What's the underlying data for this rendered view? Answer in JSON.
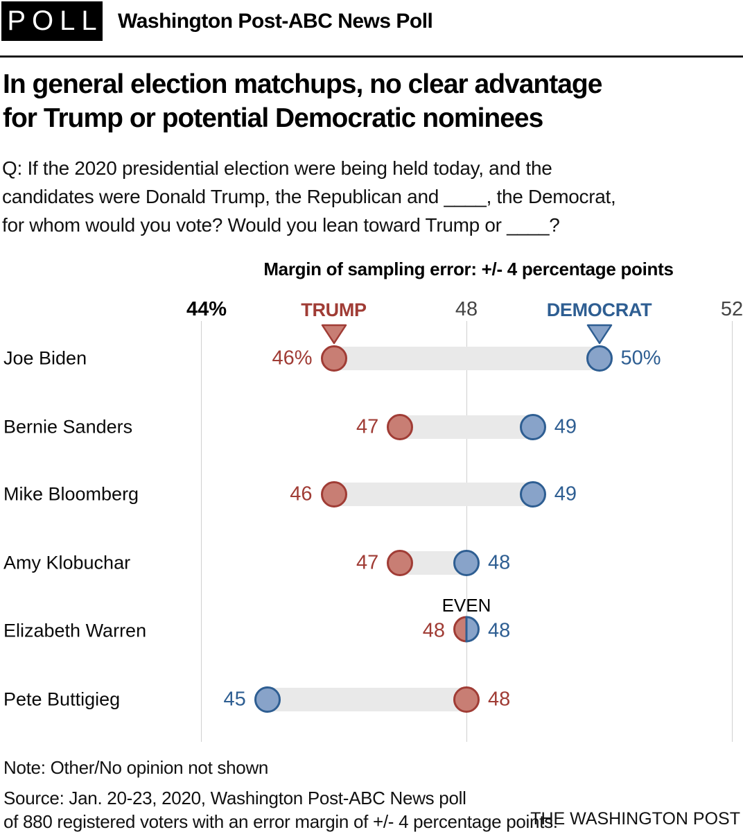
{
  "header": {
    "badge": "POLL",
    "title": "Washington Post-ABC News Poll"
  },
  "headline_lines": [
    "In general election matchups, no clear advantage",
    "for Trump or potential Democratic nominees"
  ],
  "question_lines": [
    "Q: If the 2020 presidential election were being held today, and the",
    "candidates were Donald Trump, the Republican and ____, the Democrat,",
    "for whom would you vote? Would you lean toward Trump or ____?"
  ],
  "subtitle": "Margin of sampling error: +/- 4 percentage points",
  "colors": {
    "trump_dark": "#a03c35",
    "trump_fill": "#c87e74",
    "democrat_dark": "#2e5e92",
    "democrat_fill": "#88a3c9",
    "bar": "#e9e9e9",
    "gridline": "#cfcfcf",
    "axis_gray": "#444444",
    "axis_black": "#000000"
  },
  "chart_data": {
    "type": "dumbbell",
    "title": "Margin of sampling error: +/- 4 percentage points",
    "x_axis": {
      "min": 44,
      "max": 52,
      "ticks": [
        {
          "label": "44%",
          "value": 44,
          "emphasis": true
        },
        {
          "label": "48",
          "value": 48,
          "emphasis": false
        },
        {
          "label": "52",
          "value": 52,
          "emphasis": false
        }
      ]
    },
    "legend": [
      {
        "label": "TRUMP",
        "party": "trump",
        "pointer_value": 46
      },
      {
        "label": "DEMOCRAT",
        "party": "democrat",
        "pointer_value": 50
      }
    ],
    "rows": [
      {
        "name": "Joe Biden",
        "trump": 46,
        "democrat": 50,
        "trump_label": "46%",
        "democrat_label": "50%",
        "annotation": ""
      },
      {
        "name": "Bernie Sanders",
        "trump": 47,
        "democrat": 49,
        "trump_label": "47",
        "democrat_label": "49",
        "annotation": ""
      },
      {
        "name": "Mike Bloomberg",
        "trump": 46,
        "democrat": 49,
        "trump_label": "46",
        "democrat_label": "49",
        "annotation": ""
      },
      {
        "name": "Amy Klobuchar",
        "trump": 47,
        "democrat": 48,
        "trump_label": "47",
        "democrat_label": "48",
        "annotation": ""
      },
      {
        "name": "Elizabeth Warren",
        "trump": 48,
        "democrat": 48,
        "trump_label": "48",
        "democrat_label": "48",
        "annotation": "EVEN"
      },
      {
        "name": "Pete Buttigieg",
        "trump": 48,
        "democrat": 45,
        "trump_label": "48",
        "democrat_label": "45",
        "annotation": ""
      }
    ]
  },
  "footer": {
    "note": "Note: Other/No opinion not shown",
    "source_line1": "Source: Jan. 20-23, 2020, Washington Post-ABC News poll",
    "source_line2": "of 880 registered voters with an error margin of +/- 4 percentage points.",
    "brand": "THE WASHINGTON POST"
  }
}
